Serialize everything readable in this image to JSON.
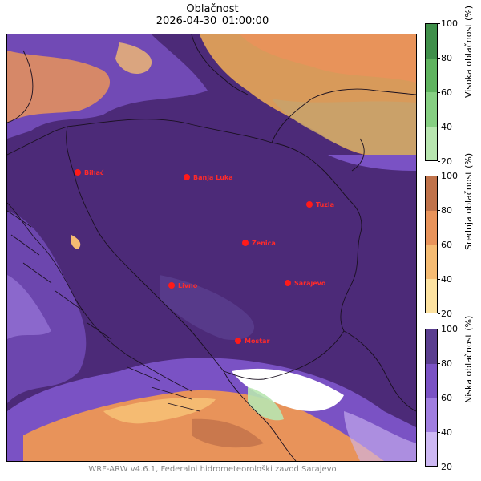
{
  "title": "Oblačnost",
  "datetime": "2026-04-30_01:00:00",
  "footer": "WRF-ARW v4.6.1, Federalni hidrometeorološki zavod Sarajevo",
  "colorbars": [
    {
      "label": "Visoka oblačnost (%)",
      "ticks": [
        "100",
        "80",
        "60",
        "40",
        "20"
      ],
      "colors": [
        "#3f8f4a",
        "#5fb35f",
        "#86cf82",
        "#b8e6b0"
      ]
    },
    {
      "label": "Srednja oblačnost (%)",
      "ticks": [
        "100",
        "80",
        "60",
        "40",
        "20"
      ],
      "colors": [
        "#c0724a",
        "#e8935a",
        "#f5bb72",
        "#fde2a0"
      ]
    },
    {
      "label": "Niska oblačnost (%)",
      "ticks": [
        "100",
        "80",
        "60",
        "40",
        "20"
      ],
      "colors": [
        "#5a3e8f",
        "#7a52c4",
        "#a07ee0",
        "#cdb8f3"
      ]
    }
  ],
  "cities": [
    {
      "name": "Bihać"
    },
    {
      "name": "Banja Luka"
    },
    {
      "name": "Tuzla"
    },
    {
      "name": "Zenica"
    },
    {
      "name": "Livno"
    },
    {
      "name": "Sarajevo"
    },
    {
      "name": "Mostar"
    }
  ],
  "palette": {
    "low_cloud_dense": "#4c2a78",
    "low_cloud_mid": "#7a52c4",
    "mid_cloud": "#e8935a",
    "mid_cloud_light": "#f5bb72",
    "clear": "#ffffff",
    "city_marker": "#ff1a1a"
  }
}
